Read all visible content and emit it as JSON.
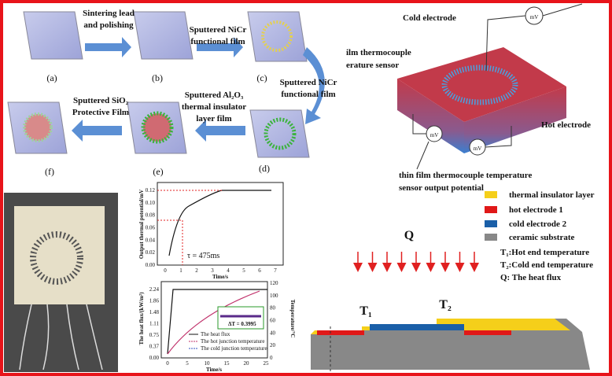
{
  "process": {
    "steps": [
      "(a)",
      "(b)",
      "(c)",
      "(d)",
      "(e)",
      "(f)"
    ],
    "arrows": [
      [
        "Sintering lead",
        "and polishing"
      ],
      [
        "Sputtered NiCr",
        "functional film"
      ],
      [
        "Sputtered NiCr",
        "functional film"
      ],
      [
        "Sputtered Al₂O₃",
        "thermal insulator",
        "layer film"
      ],
      [
        "Sputtered SiO₂",
        "Protective Film"
      ]
    ]
  },
  "sensor": {
    "cold_electrode": "Cold electrode",
    "tc_label": [
      "ilm thermocouple",
      "erature sensor"
    ],
    "hot_electrode": "Hot electrode",
    "output": [
      "thin film thermocouple temperature",
      "sensor output potential"
    ],
    "meters": [
      "mV",
      "mV",
      "mV"
    ]
  },
  "chart_top": {
    "ylabel": "Output thermal potential/mV",
    "xlabel": "Time/s",
    "yticks": [
      "0.00",
      "0.02",
      "0.04",
      "0.06",
      "0.08",
      "0.10",
      "0.12"
    ],
    "xticks": [
      "0",
      "1",
      "2",
      "3",
      "4",
      "5",
      "6",
      "7"
    ],
    "annotation": "τ = 475ms"
  },
  "chart_bottom": {
    "ylabel": "The heat flux/(kW/m²)",
    "y2label": "Temperature/°C",
    "xlabel": "Time/s",
    "yticks": [
      "0.00",
      "0.37",
      "0.75",
      "1.11",
      "1.48",
      "1.86",
      "2.24"
    ],
    "y2ticks": [
      "0",
      "20",
      "40",
      "60",
      "80",
      "100",
      "120"
    ],
    "xticks": [
      "0",
      "5",
      "10",
      "15",
      "20",
      "25"
    ],
    "legend": [
      "The heat flux",
      "The hot junction temperature",
      "The cold junction temperature"
    ],
    "inset": "ΔT = 0.3995"
  },
  "schematic": {
    "q": "Q",
    "t1": "T₁",
    "t2": "T₂",
    "legend": [
      "thermal insulator layer",
      "hot electrode 1",
      "cold electrode 2",
      "ceramic substrate"
    ],
    "notes": [
      "T₁:Hot end temperature",
      "T₂:Cold end temperature",
      "Q: The heat flux"
    ]
  }
}
